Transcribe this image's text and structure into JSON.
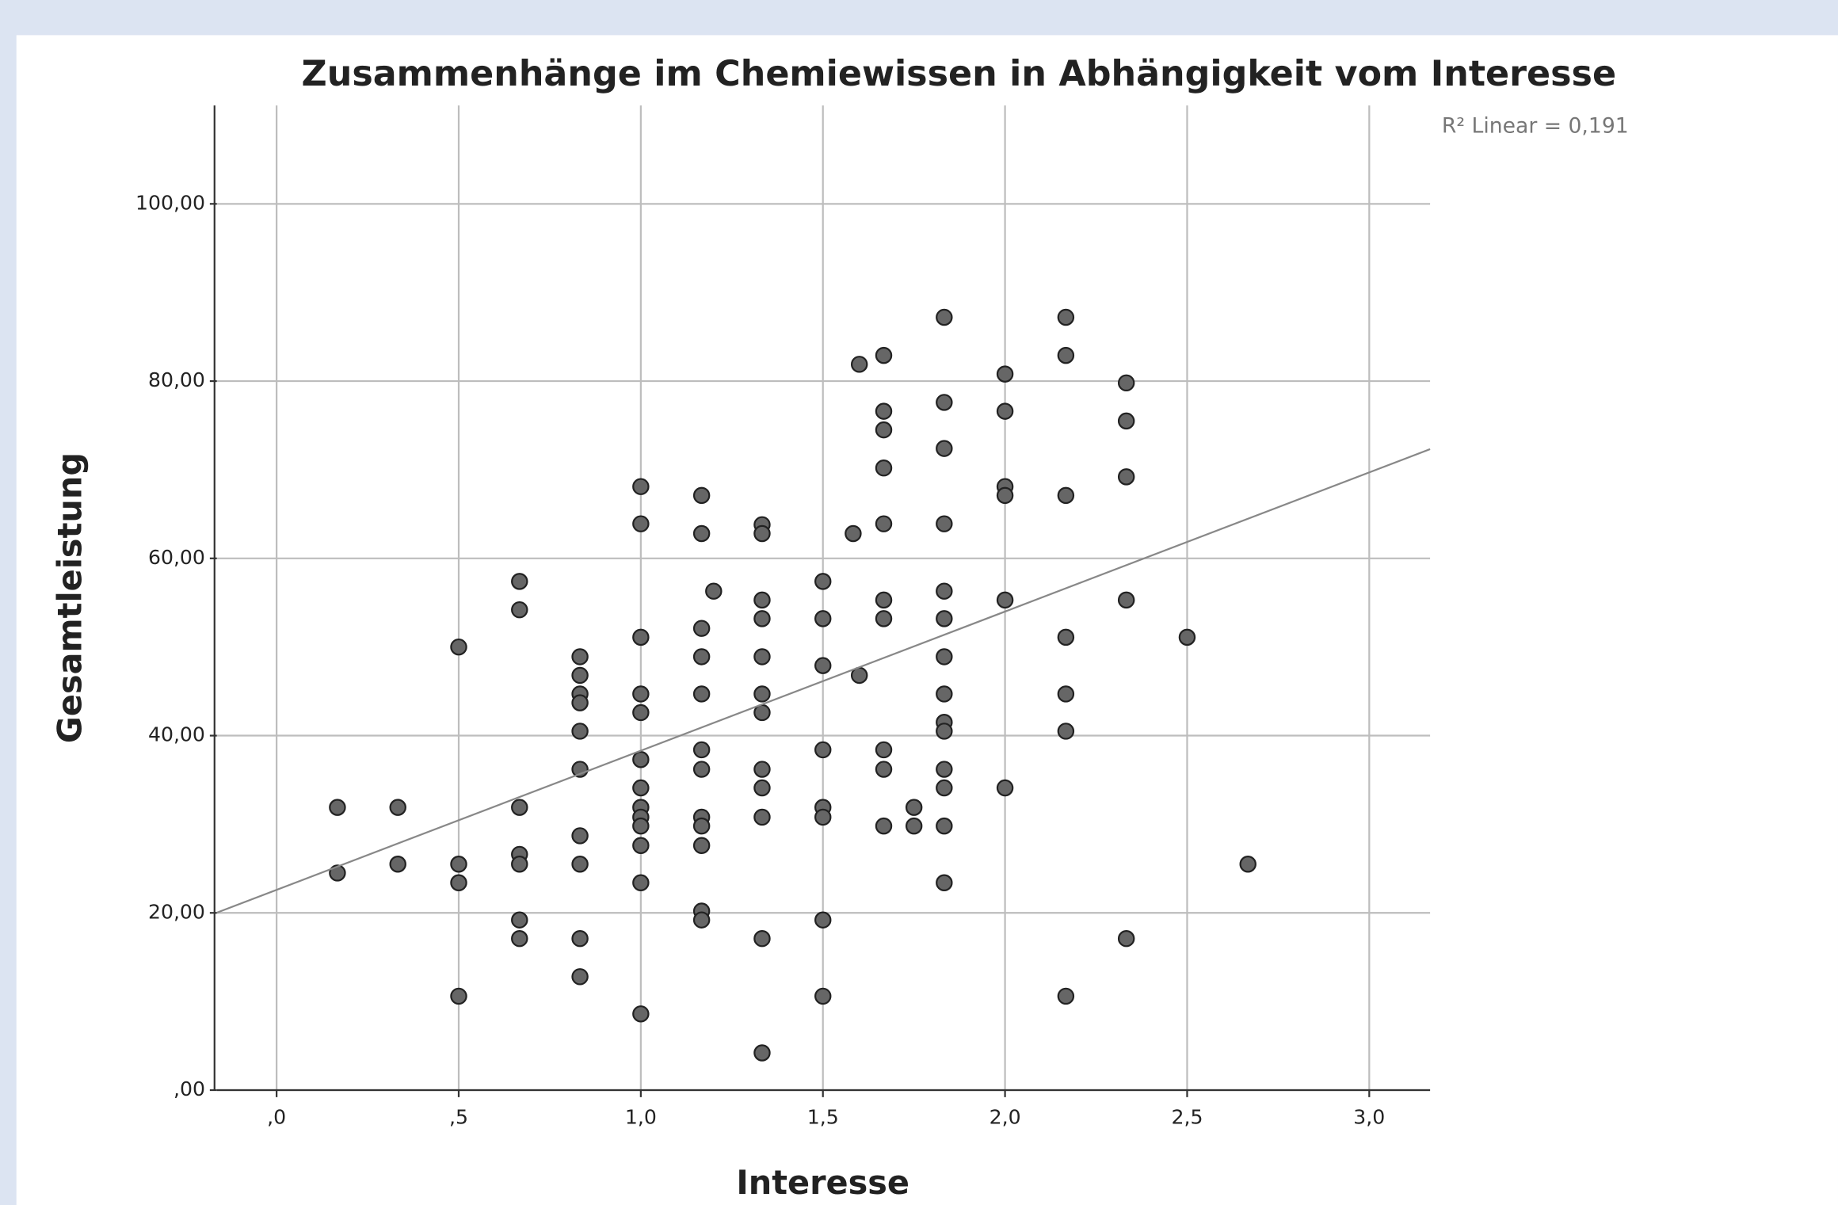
{
  "chart_data": {
    "type": "scatter",
    "title": "Zusammenhänge im Chemiewissen in Abhängigkeit vom Interesse",
    "x_label": "Interesse",
    "y_label": "Gesamtleistung",
    "annotation": "R² Linear = 0,191",
    "color": "#666666",
    "grid": true,
    "fit": {
      "intercept": 22.6,
      "slope": 15.7
    },
    "xlim": [
      -0.164,
      3.167
    ],
    "ylim": [
      0,
      111.1
    ],
    "xticks": [
      {
        "value": 0,
        "label": ",0"
      },
      {
        "value": 0.5,
        "label": ",5"
      },
      {
        "value": 1,
        "label": "1,0"
      },
      {
        "value": 1.5,
        "label": "1,5"
      },
      {
        "value": 2,
        "label": "2,0"
      },
      {
        "value": 2.5,
        "label": "2,5"
      },
      {
        "value": 3,
        "label": "3,0"
      }
    ],
    "yticks": [
      {
        "value": 0,
        "label": ",00"
      },
      {
        "value": 20,
        "label": "20,00"
      },
      {
        "value": 40,
        "label": "40,00"
      },
      {
        "value": 60,
        "label": "60,00"
      },
      {
        "value": 80,
        "label": "80,00"
      },
      {
        "value": 100,
        "label": "100,00"
      }
    ],
    "x": [
      0.167,
      0.167,
      0.333,
      0.333,
      0.5,
      0.5,
      0.5,
      0.5,
      0.667,
      0.667,
      0.667,
      0.667,
      0.667,
      0.667,
      0.667,
      0.833,
      0.833,
      0.833,
      0.833,
      0.833,
      0.833,
      0.833,
      0.833,
      0.833,
      0.833,
      1,
      1,
      1,
      1,
      1,
      1,
      1,
      1,
      1,
      1,
      1,
      1,
      1,
      1.167,
      1.167,
      1.167,
      1.167,
      1.167,
      1.167,
      1.167,
      1.167,
      1.167,
      1.167,
      1.167,
      1.167,
      1.2,
      1.333,
      1.333,
      1.333,
      1.333,
      1.333,
      1.333,
      1.333,
      1.333,
      1.333,
      1.333,
      1.333,
      1.333,
      1.5,
      1.5,
      1.5,
      1.5,
      1.5,
      1.5,
      1.5,
      1.5,
      1.583,
      1.6,
      1.6,
      1.667,
      1.667,
      1.667,
      1.667,
      1.667,
      1.667,
      1.667,
      1.667,
      1.667,
      1.667,
      1.75,
      1.75,
      1.833,
      1.833,
      1.833,
      1.833,
      1.833,
      1.833,
      1.833,
      1.833,
      1.833,
      1.833,
      1.833,
      1.833,
      1.833,
      1.833,
      2,
      2,
      2,
      2,
      2,
      2,
      2.167,
      2.167,
      2.167,
      2.167,
      2.167,
      2.167,
      2.167,
      2.333,
      2.333,
      2.333,
      2.333,
      2.333,
      2.5,
      2.667
    ],
    "values": [
      31.9,
      24.5,
      31.9,
      25.5,
      50.0,
      25.5,
      23.4,
      10.6,
      57.4,
      54.2,
      31.9,
      26.6,
      25.5,
      19.2,
      17.1,
      48.9,
      46.8,
      44.7,
      43.7,
      40.5,
      36.2,
      28.7,
      25.5,
      17.1,
      12.8,
      68.1,
      63.9,
      51.1,
      44.7,
      42.6,
      37.3,
      34.1,
      31.9,
      30.8,
      29.8,
      27.6,
      23.4,
      8.6,
      67.1,
      62.8,
      52.1,
      48.9,
      44.7,
      38.4,
      36.2,
      30.8,
      29.8,
      27.6,
      20.2,
      19.2,
      56.3,
      63.8,
      62.8,
      55.3,
      53.2,
      48.9,
      44.7,
      42.6,
      36.2,
      34.1,
      30.8,
      17.1,
      4.2,
      57.4,
      53.2,
      47.9,
      38.4,
      31.9,
      30.8,
      19.2,
      10.6,
      62.8,
      81.9,
      46.8,
      82.9,
      76.6,
      74.5,
      70.2,
      63.9,
      55.3,
      53.2,
      38.4,
      36.2,
      29.8,
      31.9,
      29.8,
      87.2,
      77.6,
      72.4,
      63.9,
      56.3,
      53.2,
      48.9,
      44.7,
      41.5,
      40.5,
      36.2,
      34.1,
      29.8,
      23.4,
      80.8,
      76.6,
      68.1,
      67.1,
      55.3,
      34.1,
      87.2,
      82.9,
      67.1,
      51.1,
      44.7,
      40.5,
      10.6,
      79.8,
      75.5,
      69.2,
      55.3,
      17.1,
      51.1,
      25.5
    ]
  }
}
